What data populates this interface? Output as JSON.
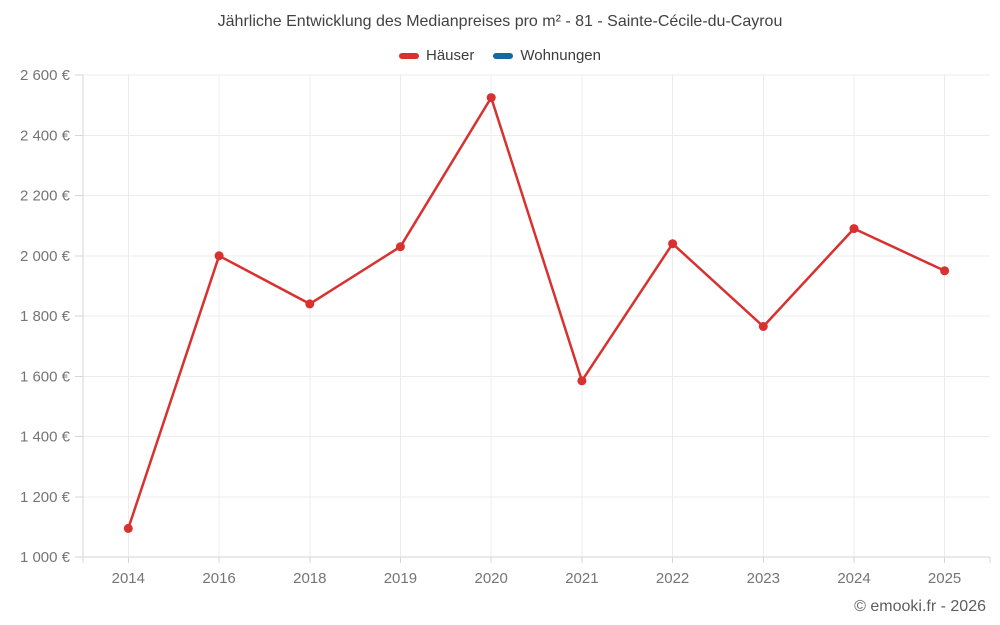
{
  "chart_data": {
    "type": "line",
    "title": "Jährliche Entwicklung des Medianpreises pro m² - 81 - Sainte-Cécile-du-Cayrou",
    "categories": [
      "2014",
      "2016",
      "2018",
      "2019",
      "2020",
      "2021",
      "2022",
      "2023",
      "2024",
      "2025"
    ],
    "series": [
      {
        "name": "Häuser",
        "color": "#d8312f",
        "values": [
          1095,
          2000,
          1840,
          2030,
          2525,
          1585,
          2040,
          1765,
          2090,
          1950
        ]
      },
      {
        "name": "Wohnungen",
        "color": "#136a9e",
        "values": []
      }
    ],
    "xlabel": "",
    "ylabel": "",
    "ylim": [
      1000,
      2600
    ],
    "ytick_step": 200,
    "ytick_format": "{value} €",
    "grid": true,
    "legend_position": "top"
  },
  "footer": {
    "copyright": "© emooki.fr - 2026"
  },
  "colors": {
    "grid": "#ececec",
    "axis": "#d6d6d6",
    "tick_label": "#757575",
    "title_text": "#424242",
    "legend_text": "#3c3c3c",
    "copyright_text": "#5e5e5e"
  }
}
